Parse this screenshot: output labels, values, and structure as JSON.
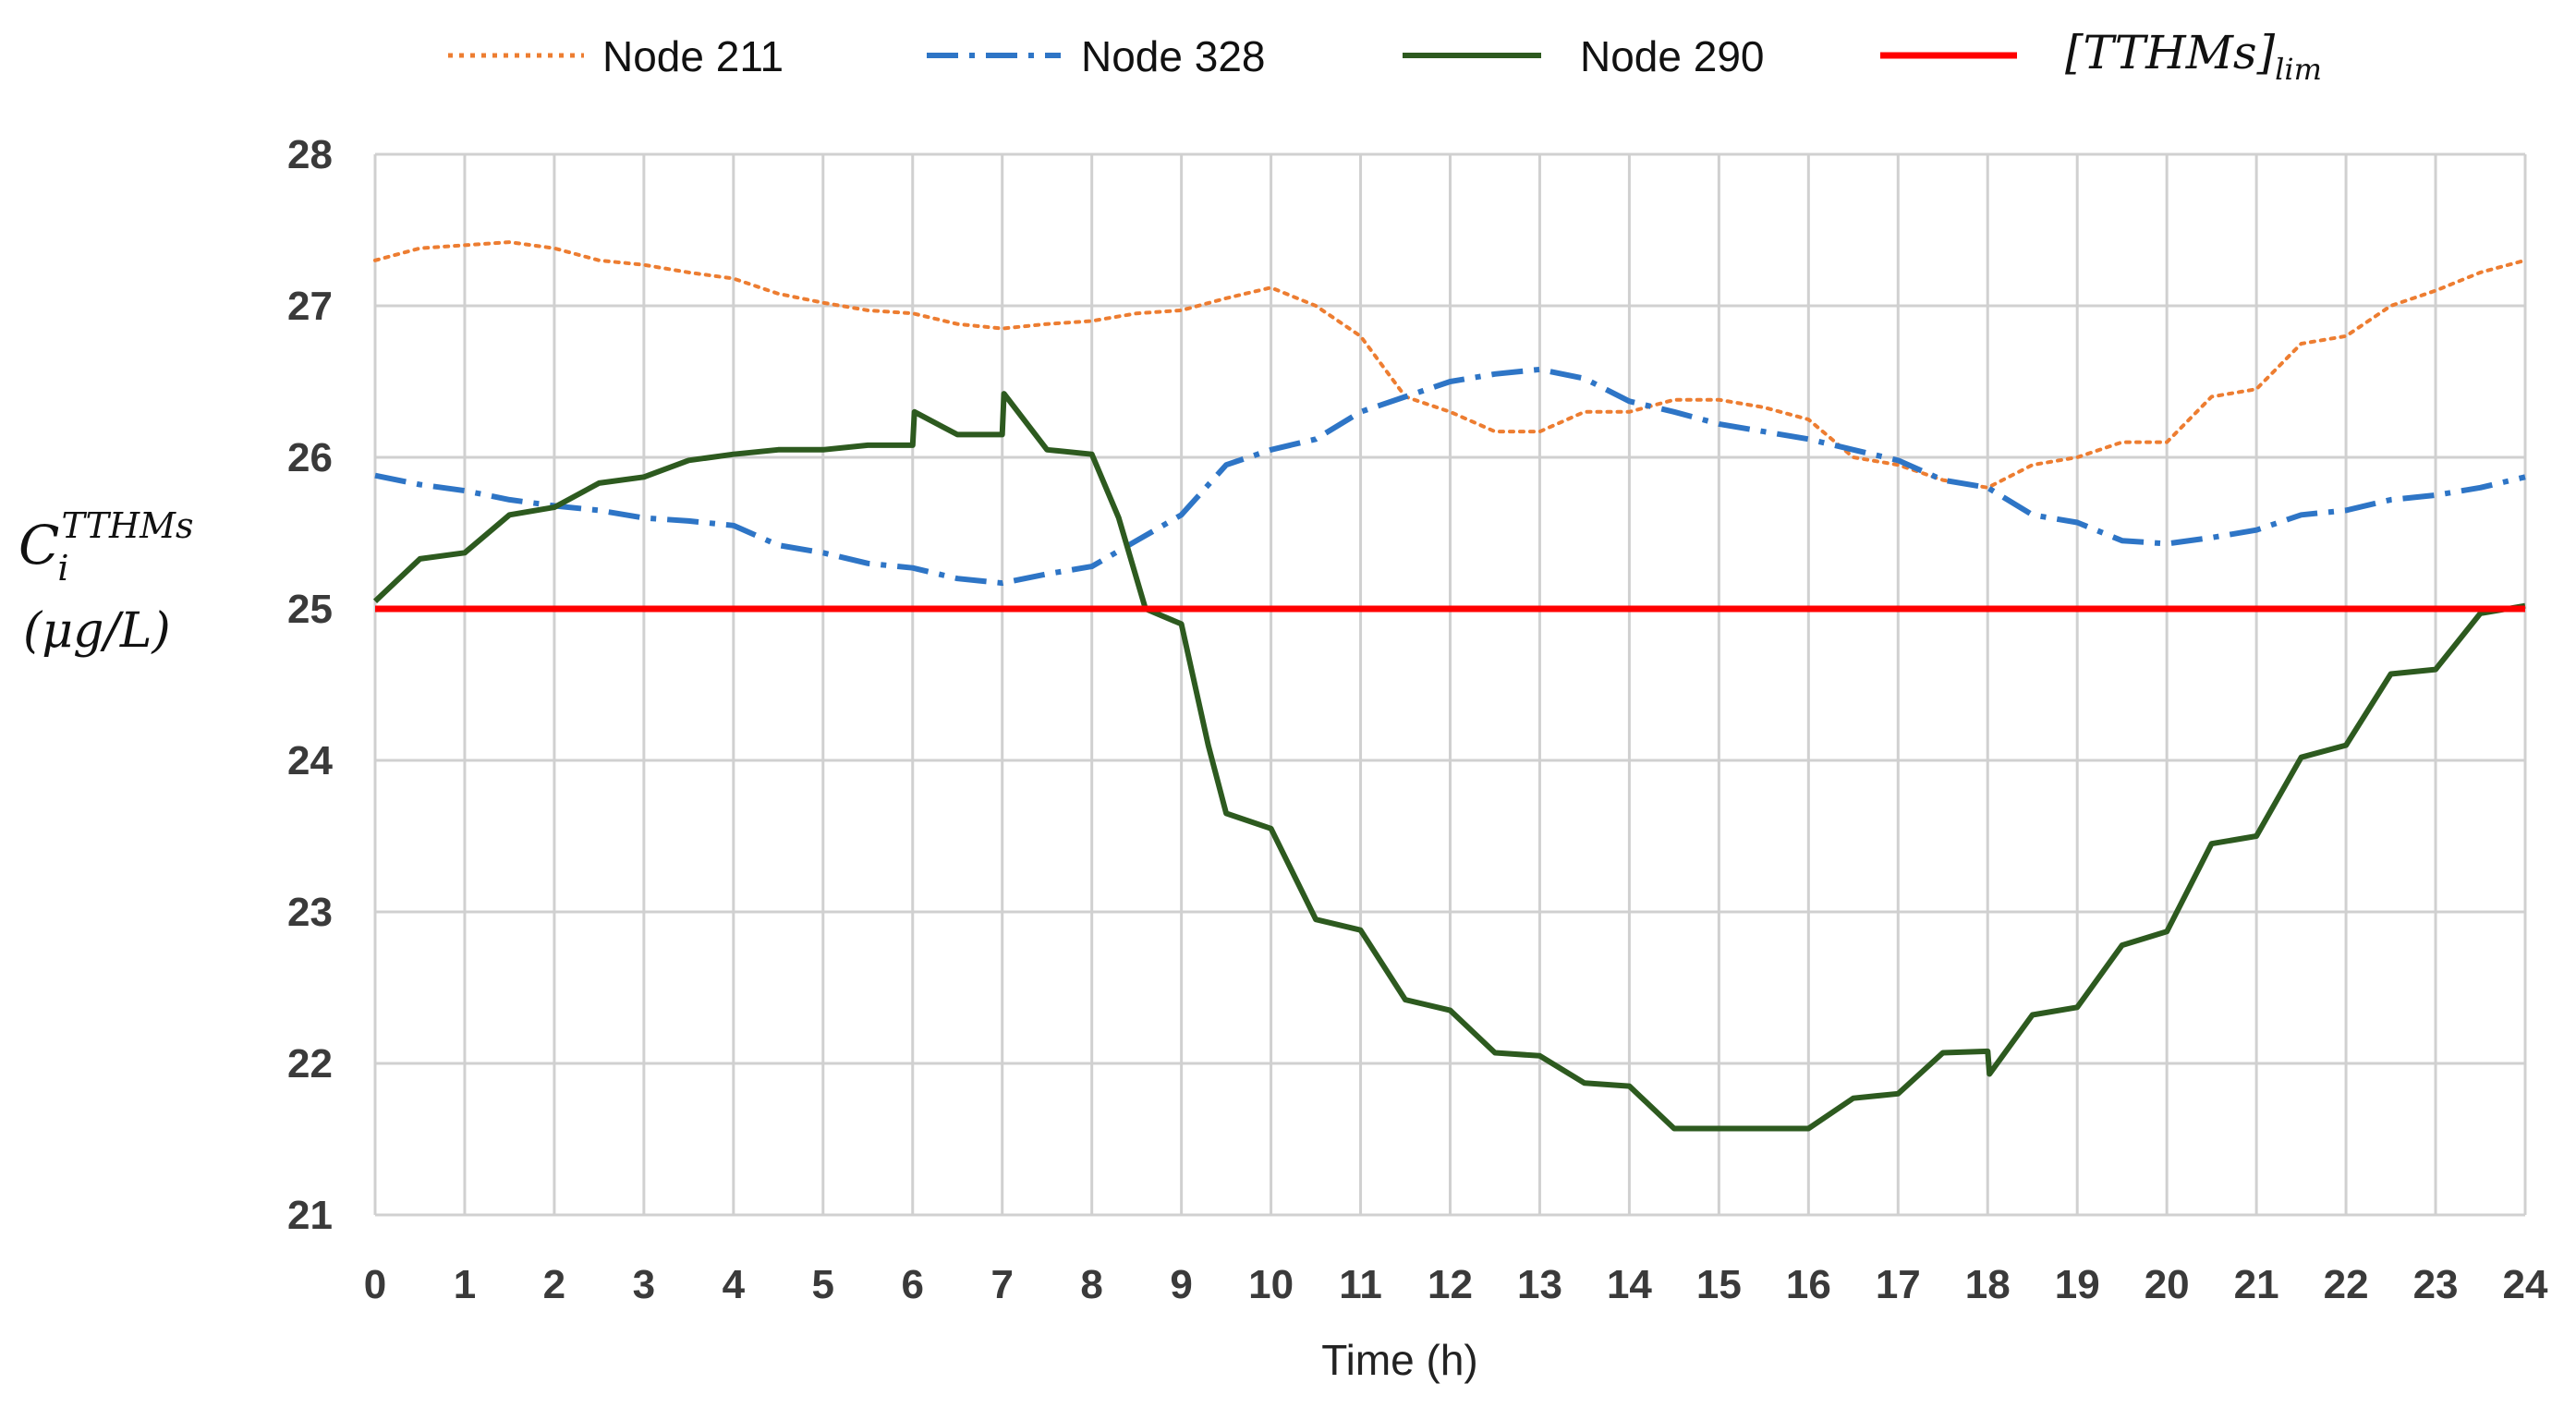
{
  "chart_data": {
    "type": "line",
    "title": "",
    "xlabel": "Time (h)",
    "ylabel": {
      "symbol": "C",
      "subscript": "i",
      "superscript": "TTHMs",
      "unit": "(μg/L)"
    },
    "xlim": [
      0,
      24
    ],
    "ylim": [
      21,
      28
    ],
    "x_ticks": [
      "0",
      "1",
      "2",
      "3",
      "4",
      "5",
      "6",
      "7",
      "8",
      "9",
      "10",
      "11",
      "12",
      "13",
      "14",
      "15",
      "16",
      "17",
      "18",
      "19",
      "20",
      "21",
      "22",
      "23",
      "24"
    ],
    "y_ticks": [
      "21",
      "22",
      "23",
      "24",
      "25",
      "26",
      "27",
      "28"
    ],
    "grid": true,
    "legend_position": "top",
    "series": [
      {
        "name": "Node 211",
        "color": "#ed7d31",
        "style": "dotted",
        "x": [
          0,
          0.5,
          1,
          1.5,
          2,
          2.5,
          3,
          3.5,
          4,
          4.5,
          5,
          5.5,
          6,
          6.5,
          7,
          7.5,
          8,
          8.5,
          9,
          9.5,
          10,
          10.5,
          11,
          11.5,
          12,
          12.5,
          13,
          13.5,
          14,
          14.5,
          15,
          15.5,
          16,
          16.5,
          17,
          17.5,
          18,
          18.5,
          19,
          19.5,
          20,
          20.5,
          21,
          21.5,
          22,
          22.5,
          23,
          23.5,
          24
        ],
        "values": [
          27.3,
          27.38,
          27.4,
          27.42,
          27.38,
          27.3,
          27.27,
          27.22,
          27.18,
          27.08,
          27.02,
          26.97,
          26.95,
          26.88,
          26.85,
          26.88,
          26.9,
          26.95,
          26.97,
          27.05,
          27.12,
          27.0,
          26.8,
          26.4,
          26.3,
          26.17,
          26.17,
          26.3,
          26.3,
          26.38,
          26.38,
          26.33,
          26.25,
          26.0,
          25.95,
          25.85,
          25.8,
          25.95,
          26.0,
          26.1,
          26.1,
          26.4,
          26.45,
          26.75,
          26.8,
          27.0,
          27.1,
          27.22,
          27.3
        ]
      },
      {
        "name": "Node 328",
        "color": "#2e75c6",
        "style": "dash-dot",
        "x": [
          0,
          0.5,
          1,
          1.5,
          2,
          2.5,
          3,
          3.5,
          4,
          4.5,
          5,
          5.5,
          6,
          6.5,
          7,
          7.5,
          8,
          8.5,
          9,
          9.5,
          10,
          10.5,
          11,
          11.5,
          12,
          12.5,
          13,
          13.5,
          14,
          14.5,
          15,
          15.5,
          16,
          16.5,
          17,
          17.5,
          18,
          18.5,
          19,
          19.5,
          20,
          20.5,
          21,
          21.5,
          22,
          22.5,
          23,
          23.5,
          24
        ],
        "values": [
          25.88,
          25.82,
          25.78,
          25.72,
          25.68,
          25.65,
          25.6,
          25.58,
          25.55,
          25.42,
          25.37,
          25.3,
          25.27,
          25.2,
          25.17,
          25.23,
          25.28,
          25.45,
          25.62,
          25.95,
          26.05,
          26.12,
          26.3,
          26.4,
          26.5,
          26.55,
          26.58,
          26.52,
          26.37,
          26.3,
          26.22,
          26.17,
          26.12,
          26.05,
          25.98,
          25.85,
          25.8,
          25.62,
          25.57,
          25.45,
          25.43,
          25.47,
          25.52,
          25.62,
          25.65,
          25.72,
          25.75,
          25.8,
          25.87
        ]
      },
      {
        "name": "Node 290",
        "color": "#2d5a1f",
        "style": "solid",
        "x": [
          0,
          0.5,
          1,
          1.5,
          2,
          2.5,
          3,
          3.5,
          4,
          4.5,
          5,
          5.5,
          6,
          6.02,
          6.5,
          7,
          7.02,
          7.5,
          8,
          8.3,
          8.6,
          9,
          9.3,
          9.5,
          10,
          10.5,
          11,
          11.5,
          12,
          12.5,
          13,
          13.5,
          14,
          14.5,
          15,
          15.5,
          16,
          16.5,
          17,
          17.5,
          18,
          18.02,
          18.5,
          19,
          19.5,
          20,
          20.5,
          21,
          21.5,
          22,
          22.5,
          23,
          23.5,
          24
        ],
        "values": [
          25.05,
          25.33,
          25.37,
          25.62,
          25.67,
          25.83,
          25.87,
          25.98,
          26.02,
          26.05,
          26.05,
          26.08,
          26.08,
          26.3,
          26.15,
          26.15,
          26.42,
          26.05,
          26.02,
          25.6,
          25.0,
          24.9,
          24.1,
          23.65,
          23.55,
          22.95,
          22.88,
          22.42,
          22.35,
          22.07,
          22.05,
          21.87,
          21.85,
          21.57,
          21.57,
          21.57,
          21.57,
          21.77,
          21.8,
          22.07,
          22.08,
          21.93,
          22.32,
          22.37,
          22.78,
          22.87,
          23.45,
          23.5,
          24.02,
          24.1,
          24.57,
          24.6,
          24.97,
          25.02
        ]
      },
      {
        "name": "[TTHMs]lim",
        "color": "#ff0000",
        "style": "solid",
        "x": [
          0,
          24
        ],
        "values": [
          25,
          25
        ]
      }
    ],
    "legend_labels": {
      "l0": "Node 211",
      "l1": "Node 328",
      "l2": "Node 290",
      "l3_main": "[TTHMs]",
      "l3_sub": "lim"
    }
  }
}
